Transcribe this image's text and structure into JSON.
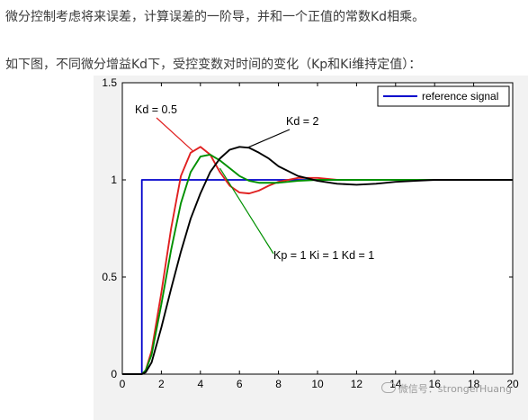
{
  "text": {
    "paragraph1": "微分控制考虑将来误差，计算误差的一阶导，并和一个正值的常数Kd相乘。",
    "paragraph2": "如下图，不同微分增益Kd下，受控变数对时间的变化（Kp和Ki维持定值）："
  },
  "watermark": "微信号：strongerHuang",
  "chart_data": {
    "type": "line",
    "title": "",
    "xlabel": "",
    "ylabel": "",
    "xlim": [
      0,
      20
    ],
    "ylim": [
      0,
      1.5
    ],
    "x_ticks": [
      0,
      2,
      4,
      6,
      8,
      10,
      12,
      14,
      16,
      18,
      20
    ],
    "y_ticks": [
      0,
      0.5,
      1,
      1.5
    ],
    "x_tick_labels": [
      "0",
      "2",
      "4",
      "6",
      "8",
      "10",
      "12",
      "14",
      "16",
      "18",
      "20"
    ],
    "y_tick_labels": [
      "0",
      "0.5",
      "1",
      "1.5"
    ],
    "grid": false,
    "legend_position": "top-right",
    "series": [
      {
        "name": "reference signal",
        "color": "#0000cc",
        "points": [
          [
            0,
            0
          ],
          [
            1,
            0
          ],
          [
            1,
            1
          ],
          [
            20,
            1
          ]
        ]
      },
      {
        "label": "Kd = 0.5",
        "color": "#e02020",
        "points": [
          [
            0,
            0
          ],
          [
            1,
            0
          ],
          [
            1.2,
            0.02
          ],
          [
            1.5,
            0.12
          ],
          [
            2,
            0.42
          ],
          [
            2.5,
            0.75
          ],
          [
            3,
            1.02
          ],
          [
            3.5,
            1.14
          ],
          [
            4,
            1.17
          ],
          [
            4.5,
            1.13
          ],
          [
            5,
            1.04
          ],
          [
            5.5,
            0.97
          ],
          [
            6,
            0.935
          ],
          [
            6.5,
            0.93
          ],
          [
            7,
            0.945
          ],
          [
            7.5,
            0.97
          ],
          [
            8,
            0.99
          ],
          [
            9,
            1.01
          ],
          [
            10,
            1.01
          ],
          [
            11,
            1.0
          ],
          [
            12,
            1.0
          ],
          [
            14,
            1.0
          ],
          [
            16,
            1.0
          ],
          [
            20,
            1.0
          ]
        ]
      },
      {
        "label": "Kd = 1",
        "color": "#009000",
        "points": [
          [
            0,
            0
          ],
          [
            1,
            0
          ],
          [
            1.2,
            0.02
          ],
          [
            1.5,
            0.1
          ],
          [
            2,
            0.36
          ],
          [
            2.5,
            0.64
          ],
          [
            3,
            0.88
          ],
          [
            3.5,
            1.04
          ],
          [
            4,
            1.12
          ],
          [
            4.5,
            1.13
          ],
          [
            5,
            1.1
          ],
          [
            5.5,
            1.06
          ],
          [
            6,
            1.02
          ],
          [
            6.5,
            0.995
          ],
          [
            7,
            0.985
          ],
          [
            8,
            0.985
          ],
          [
            9,
            0.995
          ],
          [
            10,
            1.0
          ],
          [
            12,
            1.0
          ],
          [
            16,
            1.0
          ],
          [
            20,
            1.0
          ]
        ]
      },
      {
        "label": "Kd = 2",
        "color": "#000000",
        "points": [
          [
            0,
            0
          ],
          [
            1,
            0
          ],
          [
            1.2,
            0.01
          ],
          [
            1.5,
            0.06
          ],
          [
            2,
            0.24
          ],
          [
            2.5,
            0.44
          ],
          [
            3,
            0.63
          ],
          [
            3.5,
            0.8
          ],
          [
            4,
            0.93
          ],
          [
            4.5,
            1.04
          ],
          [
            5,
            1.11
          ],
          [
            5.5,
            1.155
          ],
          [
            6,
            1.17
          ],
          [
            6.5,
            1.165
          ],
          [
            7,
            1.14
          ],
          [
            7.5,
            1.11
          ],
          [
            8,
            1.07
          ],
          [
            9,
            1.02
          ],
          [
            10,
            0.995
          ],
          [
            11,
            0.98
          ],
          [
            12,
            0.975
          ],
          [
            13,
            0.98
          ],
          [
            14,
            0.99
          ],
          [
            15,
            0.995
          ],
          [
            16,
            1.0
          ],
          [
            18,
            1.0
          ],
          [
            20,
            1.0
          ]
        ]
      }
    ],
    "annotations": [
      {
        "text": "Kd = 0.5",
        "series": "Kd = 0.5"
      },
      {
        "text": "Kd = 2",
        "series": "Kd = 2"
      },
      {
        "text": "Kp = 1   Ki = 1   Kd = 1",
        "series": "Kd = 1"
      }
    ]
  }
}
